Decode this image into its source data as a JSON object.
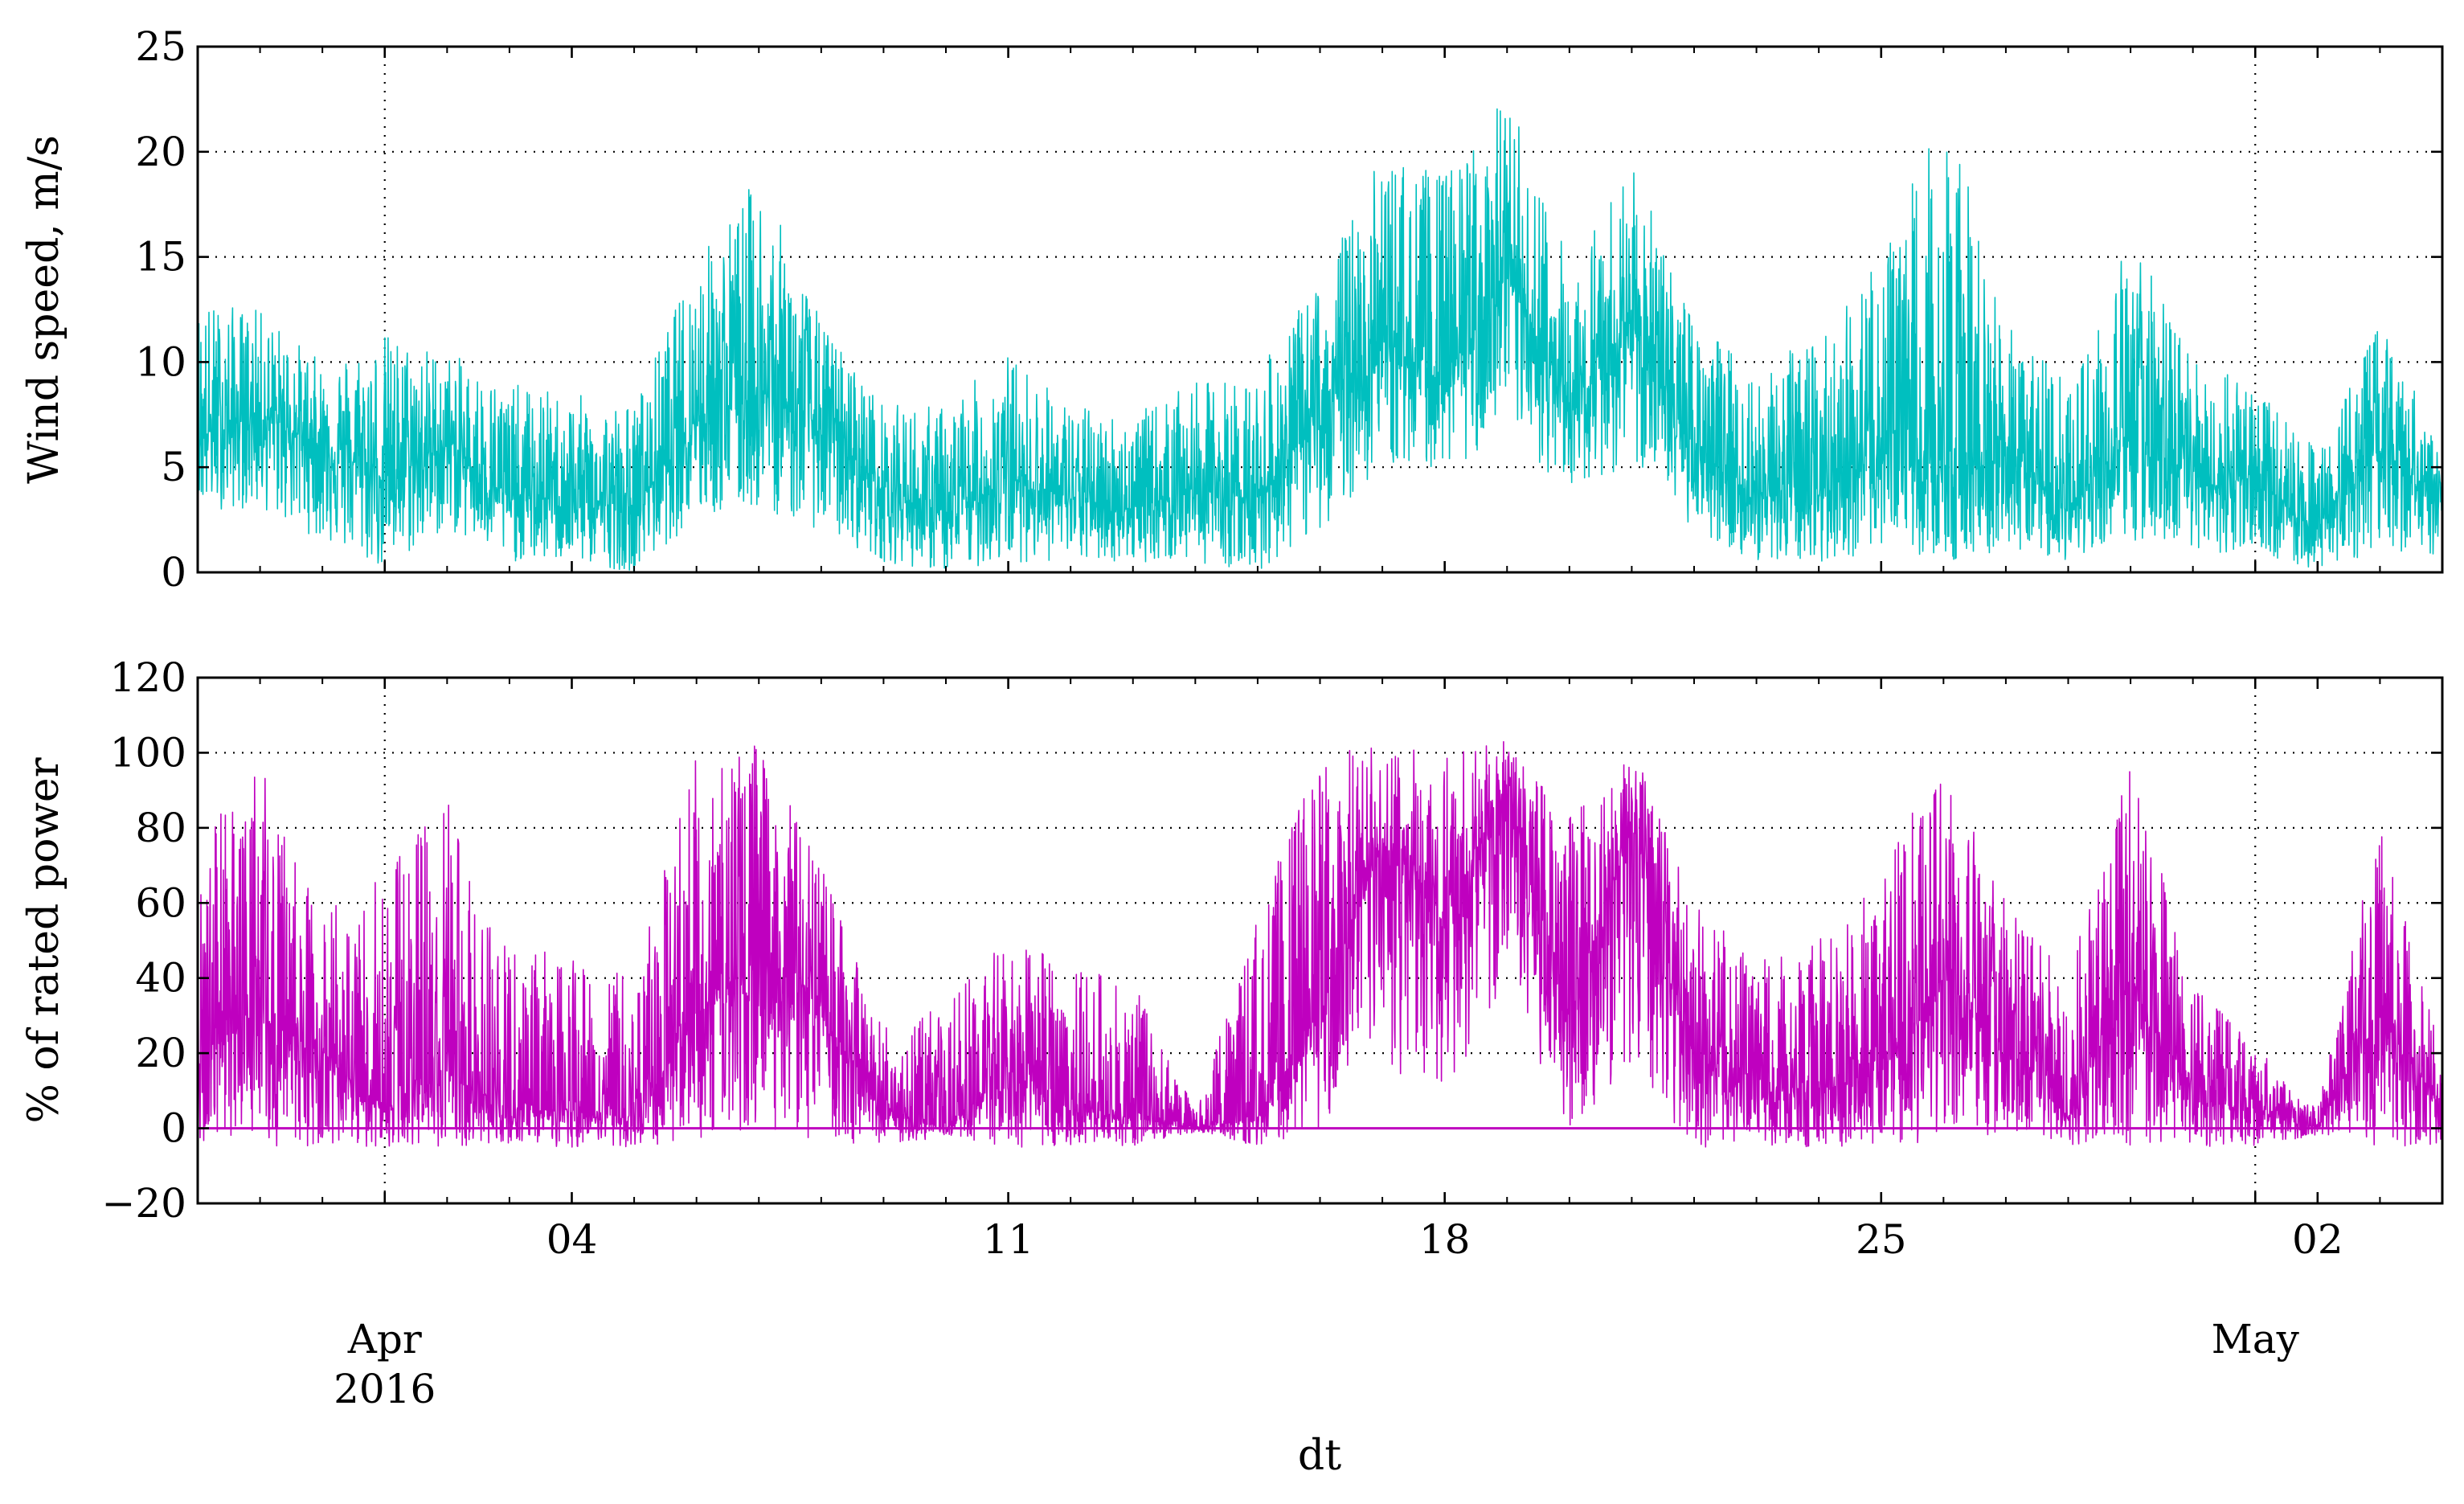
{
  "chart_data": [
    {
      "type": "line",
      "xlabel": "",
      "ylabel": "Wind speed, m/s",
      "ylim": [
        0,
        25
      ],
      "yticks": [
        "0",
        "5",
        "10",
        "15",
        "20",
        "25"
      ],
      "grid": true,
      "color": "#00bfbf",
      "x_range": [
        "2016-03-29",
        "2016-05-04"
      ],
      "series": [
        {
          "x": [
            "2016-03-29",
            "2016-03-30",
            "2016-03-31",
            "2016-04-01",
            "2016-04-02",
            "2016-04-03",
            "2016-04-04",
            "2016-04-05",
            "2016-04-06",
            "2016-04-07",
            "2016-04-08",
            "2016-04-09",
            "2016-04-10",
            "2016-04-11",
            "2016-04-12",
            "2016-04-13",
            "2016-04-14",
            "2016-04-15",
            "2016-04-16",
            "2016-04-17",
            "2016-04-18",
            "2016-04-19",
            "2016-04-20",
            "2016-04-21",
            "2016-04-22",
            "2016-04-23",
            "2016-04-24",
            "2016-04-25",
            "2016-04-26",
            "2016-04-27",
            "2016-04-28",
            "2016-04-29",
            "2016-04-30",
            "2016-05-01",
            "2016-05-02",
            "2016-05-03",
            "2016-05-04"
          ],
          "mean": [
            6.5,
            7.5,
            6.0,
            4.5,
            6.0,
            3.5,
            3.5,
            3.0,
            7.5,
            8.5,
            7.0,
            4.0,
            2.5,
            4.5,
            3.5,
            3.0,
            4.0,
            3.5,
            7.5,
            11.0,
            9.0,
            14.0,
            7.5,
            12.0,
            6.0,
            3.5,
            4.0,
            5.5,
            4.5,
            5.5,
            3.0,
            6.5,
            4.0,
            4.5,
            2.0,
            6.0,
            3.0
          ],
          "max": [
            13.0,
            12.5,
            10.0,
            11.5,
            10.5,
            9.0,
            8.5,
            8.0,
            15.0,
            19.0,
            12.0,
            8.0,
            8.0,
            10.5,
            8.0,
            7.5,
            9.0,
            9.5,
            14.0,
            20.0,
            19.0,
            22.8,
            15.0,
            19.5,
            12.0,
            10.0,
            11.0,
            15.0,
            22.5,
            12.0,
            9.0,
            16.5,
            10.0,
            9.0,
            6.0,
            12.0,
            6.0
          ],
          "min": [
            3.0,
            3.0,
            1.5,
            0.0,
            2.0,
            0.5,
            0.5,
            0.0,
            2.5,
            3.0,
            2.0,
            0.5,
            0.0,
            0.5,
            0.5,
            0.5,
            0.5,
            0.0,
            2.0,
            5.0,
            5.0,
            6.0,
            4.0,
            5.0,
            2.0,
            0.5,
            0.5,
            1.0,
            0.5,
            1.0,
            0.5,
            1.0,
            0.5,
            1.0,
            0.0,
            1.0,
            0.5
          ]
        }
      ]
    },
    {
      "type": "line",
      "xlabel": "dt",
      "ylabel": "% of rated power",
      "ylim": [
        -20,
        120
      ],
      "yticks": [
        "−20",
        "0",
        "20",
        "40",
        "60",
        "80",
        "100",
        "120"
      ],
      "grid": true,
      "color": "#bf00bf",
      "x_range": [
        "2016-03-29",
        "2016-05-04"
      ],
      "major_ticks": [
        {
          "date": "2016-04-04",
          "label": "04"
        },
        {
          "date": "2016-04-11",
          "label": "11"
        },
        {
          "date": "2016-04-18",
          "label": "18"
        },
        {
          "date": "2016-04-25",
          "label": "25"
        },
        {
          "date": "2016-05-02",
          "label": "02"
        }
      ],
      "month_labels": [
        {
          "date": "2016-04-01",
          "lines": [
            "Apr",
            "2016"
          ]
        },
        {
          "date": "2016-05-01",
          "lines": [
            "May"
          ]
        }
      ],
      "series": [
        {
          "x": [
            "2016-03-29",
            "2016-03-30",
            "2016-03-31",
            "2016-04-01",
            "2016-04-02",
            "2016-04-03",
            "2016-04-04",
            "2016-04-05",
            "2016-04-06",
            "2016-04-07",
            "2016-04-08",
            "2016-04-09",
            "2016-04-10",
            "2016-04-11",
            "2016-04-12",
            "2016-04-13",
            "2016-04-14",
            "2016-04-15",
            "2016-04-16",
            "2016-04-17",
            "2016-04-18",
            "2016-04-19",
            "2016-04-20",
            "2016-04-21",
            "2016-04-22",
            "2016-04-23",
            "2016-04-24",
            "2016-04-25",
            "2016-04-26",
            "2016-04-27",
            "2016-04-28",
            "2016-04-29",
            "2016-04-30",
            "2016-05-01",
            "2016-05-02",
            "2016-05-03",
            "2016-05-04"
          ],
          "mean": [
            20,
            30,
            20,
            5,
            15,
            5,
            5,
            3,
            30,
            45,
            30,
            5,
            0,
            15,
            5,
            3,
            0,
            3,
            30,
            75,
            55,
            90,
            30,
            80,
            20,
            8,
            10,
            15,
            40,
            20,
            3,
            40,
            8,
            5,
            0,
            30,
            5
          ],
          "max": [
            78,
            100,
            57,
            68,
            88,
            48,
            47,
            40,
            100,
            102,
            70,
            28,
            32,
            54,
            43,
            40,
            5,
            58,
            101,
            102,
            102,
            103,
            85,
            102,
            60,
            45,
            50,
            68,
            102,
            61,
            40,
            101,
            40,
            22,
            5,
            85,
            18
          ],
          "min": [
            -5,
            -5,
            -5,
            -5,
            -5,
            -5,
            -5,
            -5,
            -3,
            0,
            -5,
            -5,
            -2,
            -5,
            -5,
            -5,
            -1,
            -5,
            0,
            15,
            10,
            35,
            0,
            15,
            -5,
            -5,
            -5,
            -5,
            -5,
            -5,
            -5,
            -5,
            -5,
            -5,
            -2,
            -5,
            -5
          ]
        }
      ]
    }
  ]
}
